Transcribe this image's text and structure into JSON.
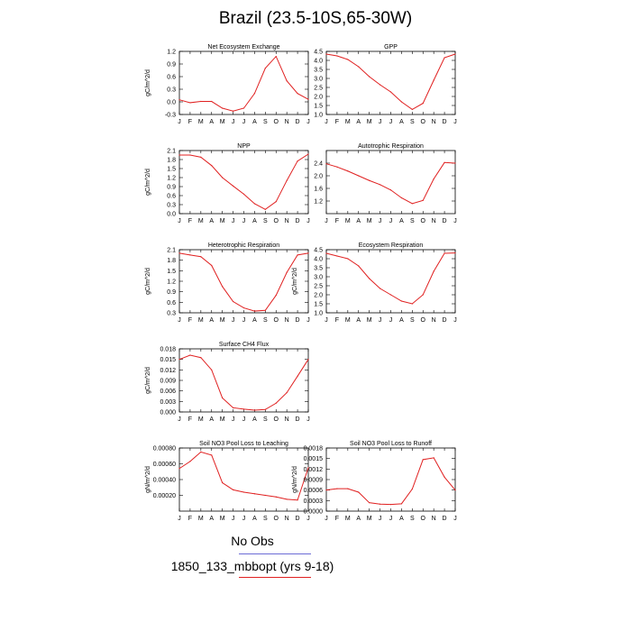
{
  "main_title": "Brazil (23.5-10S,65-30W)",
  "months": [
    "J",
    "F",
    "M",
    "A",
    "M",
    "J",
    "J",
    "A",
    "S",
    "O",
    "N",
    "D",
    "J"
  ],
  "chart_data": [
    {
      "type": "line",
      "title": "Net Ecosystem Exchange",
      "ylabel": "gC/m^2/d",
      "ylim": [
        -0.3,
        1.2
      ],
      "yticks": [
        "-0.3",
        "0.0",
        "0.3",
        "0.6",
        "0.9",
        "1.2"
      ],
      "ytick_values": [
        -0.3,
        0.0,
        0.3,
        0.6,
        0.9,
        1.2
      ],
      "values": [
        0.05,
        -0.02,
        0.01,
        0.01,
        -0.15,
        -0.22,
        -0.15,
        0.2,
        0.8,
        1.08,
        0.5,
        0.2,
        0.06
      ]
    },
    {
      "type": "line",
      "title": "GPP",
      "ylabel": "",
      "ylim": [
        1.0,
        4.5
      ],
      "yticks": [
        "1.0",
        "1.5",
        "2.0",
        "2.5",
        "3.0",
        "3.5",
        "4.0",
        "4.5"
      ],
      "ytick_values": [
        1.0,
        1.5,
        2.0,
        2.5,
        3.0,
        3.5,
        4.0,
        4.5
      ],
      "values": [
        4.35,
        4.25,
        4.05,
        3.65,
        3.1,
        2.65,
        2.25,
        1.7,
        1.28,
        1.62,
        2.9,
        4.15,
        4.35
      ]
    },
    {
      "type": "line",
      "title": "NPP",
      "ylabel": "gC/m^2/d",
      "ylim": [
        0.0,
        2.1
      ],
      "yticks": [
        "0.0",
        "0.3",
        "0.6",
        "0.9",
        "1.2",
        "1.5",
        "1.8",
        "2.1"
      ],
      "ytick_values": [
        0.0,
        0.3,
        0.6,
        0.9,
        1.2,
        1.5,
        1.8,
        2.1
      ],
      "values": [
        1.95,
        1.95,
        1.88,
        1.6,
        1.2,
        0.92,
        0.65,
        0.33,
        0.14,
        0.4,
        1.1,
        1.75,
        1.98
      ]
    },
    {
      "type": "line",
      "title": "Autotrophic Respiration",
      "ylabel": "",
      "ylim": [
        0.8,
        2.8
      ],
      "yticks": [
        "1.2",
        "1.6",
        "2.0",
        "2.4"
      ],
      "ytick_values": [
        1.2,
        1.6,
        2.0,
        2.4
      ],
      "values": [
        2.38,
        2.28,
        2.15,
        2.0,
        1.85,
        1.72,
        1.55,
        1.3,
        1.12,
        1.22,
        1.9,
        2.42,
        2.4
      ]
    },
    {
      "type": "line",
      "title": "Heterotrophic Respiration",
      "ylabel": "gC/m^2/d",
      "ylim": [
        0.3,
        2.1
      ],
      "yticks": [
        "0.3",
        "0.6",
        "0.9",
        "1.2",
        "1.5",
        "1.8",
        "2.1"
      ],
      "ytick_values": [
        0.3,
        0.6,
        0.9,
        1.2,
        1.5,
        1.8,
        2.1
      ],
      "values": [
        2.0,
        1.95,
        1.9,
        1.65,
        1.05,
        0.62,
        0.44,
        0.35,
        0.37,
        0.8,
        1.45,
        1.95,
        2.0
      ]
    },
    {
      "type": "line",
      "title": "Ecosystem Respiration",
      "ylabel": "gC/m^2/d",
      "ylim": [
        1.0,
        4.5
      ],
      "yticks": [
        "1.0",
        "1.5",
        "2.0",
        "2.5",
        "3.0",
        "3.5",
        "4.0",
        "4.5"
      ],
      "ytick_values": [
        1.0,
        1.5,
        2.0,
        2.5,
        3.0,
        3.5,
        4.0,
        4.5
      ],
      "values": [
        4.3,
        4.15,
        4.0,
        3.6,
        2.9,
        2.35,
        2.0,
        1.65,
        1.5,
        2.0,
        3.3,
        4.3,
        4.32
      ]
    },
    {
      "type": "line",
      "title": "Surface CH4 Flux",
      "ylabel": "gC/m^2/d",
      "ylim": [
        0.0,
        0.018
      ],
      "yticks": [
        "0.000",
        "0.003",
        "0.006",
        "0.009",
        "0.012",
        "0.015",
        "0.018"
      ],
      "ytick_values": [
        0.0,
        0.003,
        0.006,
        0.009,
        0.012,
        0.015,
        0.018
      ],
      "values": [
        0.015,
        0.0162,
        0.0155,
        0.012,
        0.004,
        0.0012,
        0.0008,
        0.0005,
        0.0007,
        0.0025,
        0.0055,
        0.0102,
        0.015
      ]
    },
    {
      "type": "line",
      "title": "Soil NO3 Pool Loss to Leaching",
      "ylabel": "gN/m^2/d",
      "ylim": [
        0.0,
        0.0008
      ],
      "yticks": [
        "0.00020",
        "0.00040",
        "0.00060",
        "0.00080"
      ],
      "ytick_values": [
        0.0002,
        0.0004,
        0.0006,
        0.0008
      ],
      "values": [
        0.00054,
        0.00063,
        0.00075,
        0.00071,
        0.00036,
        0.00027,
        0.00024,
        0.00022,
        0.0002,
        0.00018,
        0.00015,
        0.00014,
        0.00055
      ]
    },
    {
      "type": "line",
      "title": "Soil NO3 Pool Loss to Runoff",
      "ylabel": "gN/m^2/d",
      "ylim": [
        0.0,
        0.0018
      ],
      "yticks": [
        "0.0000",
        "0.0003",
        "0.0006",
        "0.0009",
        "0.0012",
        "0.0015",
        "0.0018"
      ],
      "ytick_values": [
        0.0,
        0.0003,
        0.0006,
        0.0009,
        0.0012,
        0.0015,
        0.0018
      ],
      "values": [
        0.0006,
        0.00064,
        0.00064,
        0.00054,
        0.00024,
        0.0002,
        0.00019,
        0.00021,
        0.00063,
        0.00147,
        0.00152,
        0.00097,
        0.0006
      ]
    }
  ],
  "legend": {
    "items": [
      {
        "label": "No Obs",
        "color": "#6b6bd6"
      },
      {
        "label": "1850_133_mbbopt (yrs 9-18)",
        "color": "#e02020"
      }
    ]
  },
  "line_color": "#e02020"
}
